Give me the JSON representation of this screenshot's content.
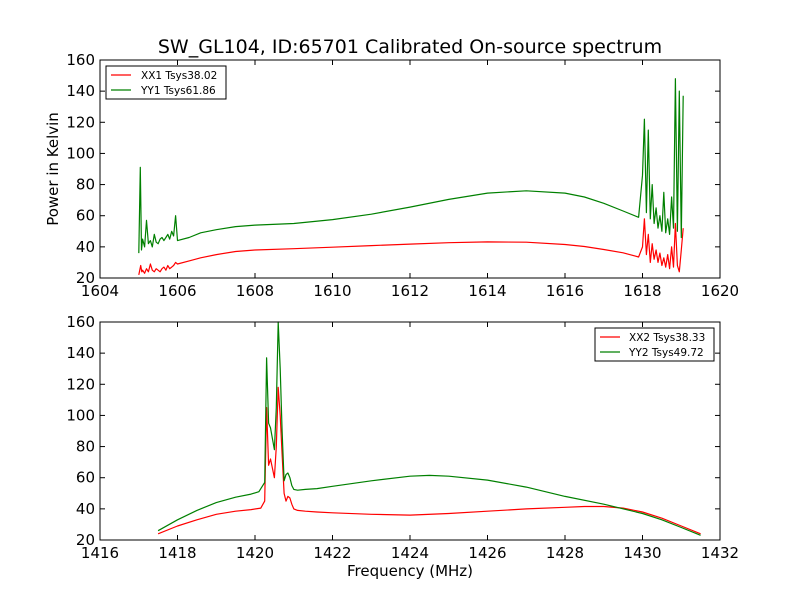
{
  "chart_data": [
    {
      "type": "line",
      "title": "SW_GL104, ID:65701 Calibrated On-source spectrum",
      "xlabel": "",
      "ylabel": "Power in Kelvin",
      "xlim": [
        1604,
        1620
      ],
      "ylim": [
        20,
        160
      ],
      "xticks": [
        1604,
        1606,
        1608,
        1610,
        1612,
        1614,
        1616,
        1618,
        1620
      ],
      "yticks": [
        20,
        40,
        60,
        80,
        100,
        120,
        140,
        160
      ],
      "grid": false,
      "legend": "top-left",
      "series": [
        {
          "name": "XX1 Tsys38.02",
          "color": "#ff0000",
          "x": [
            1605.0,
            1605.05,
            1605.08,
            1605.1,
            1605.15,
            1605.2,
            1605.25,
            1605.3,
            1605.35,
            1605.4,
            1605.45,
            1605.5,
            1605.55,
            1605.6,
            1605.65,
            1605.7,
            1605.75,
            1605.8,
            1605.85,
            1605.9,
            1605.95,
            1606.0,
            1606.3,
            1606.6,
            1607.0,
            1607.5,
            1608.0,
            1609.0,
            1610.0,
            1611.0,
            1612.0,
            1613.0,
            1614.0,
            1615.0,
            1616.0,
            1616.5,
            1617.0,
            1617.5,
            1617.9,
            1618.0,
            1618.05,
            1618.1,
            1618.15,
            1618.2,
            1618.25,
            1618.3,
            1618.35,
            1618.4,
            1618.45,
            1618.5,
            1618.55,
            1618.6,
            1618.65,
            1618.7,
            1618.75,
            1618.8,
            1618.85,
            1618.9,
            1618.95,
            1619.0,
            1619.05
          ],
          "y": [
            22,
            28,
            24,
            25,
            23,
            26,
            24,
            29,
            25,
            24,
            26,
            25,
            24,
            26,
            27,
            25,
            28,
            26,
            27,
            28,
            30,
            29,
            31,
            33,
            35,
            37,
            38,
            38.8,
            39.8,
            40.8,
            41.8,
            42.7,
            43.2,
            43.0,
            41.5,
            40.2,
            38.3,
            36.2,
            33.5,
            40,
            58,
            35,
            48,
            30,
            42,
            32,
            38,
            30,
            36,
            28,
            33,
            27,
            35,
            26,
            40,
            27,
            55,
            28,
            24,
            38,
            52
          ]
        },
        {
          "name": "YY1 Tsys61.86",
          "color": "#008000",
          "x": [
            1605.0,
            1605.04,
            1605.07,
            1605.1,
            1605.15,
            1605.2,
            1605.25,
            1605.3,
            1605.35,
            1605.4,
            1605.45,
            1605.5,
            1605.55,
            1605.6,
            1605.65,
            1605.7,
            1605.75,
            1605.8,
            1605.85,
            1605.9,
            1605.95,
            1606.0,
            1606.3,
            1606.6,
            1607.0,
            1607.5,
            1608.0,
            1609.0,
            1610.0,
            1611.0,
            1612.0,
            1613.0,
            1614.0,
            1615.0,
            1616.0,
            1616.5,
            1617.0,
            1617.5,
            1617.9,
            1618.0,
            1618.05,
            1618.1,
            1618.15,
            1618.2,
            1618.25,
            1618.3,
            1618.35,
            1618.4,
            1618.45,
            1618.5,
            1618.55,
            1618.6,
            1618.65,
            1618.7,
            1618.75,
            1618.8,
            1618.85,
            1618.9,
            1618.95,
            1619.0,
            1619.05
          ],
          "y": [
            36,
            91,
            38,
            45,
            40,
            57,
            42,
            44,
            40,
            48,
            43,
            42,
            45,
            46,
            44,
            46,
            48,
            45,
            50,
            47,
            60,
            44,
            46,
            49,
            51,
            53,
            54,
            55,
            57.5,
            61,
            65.5,
            70.5,
            74.5,
            76,
            74.5,
            72,
            68,
            63,
            59,
            86,
            122,
            62,
            115,
            58,
            80,
            55,
            65,
            52,
            60,
            50,
            75,
            49,
            58,
            48,
            72,
            52,
            148,
            50,
            140,
            46,
            137
          ]
        }
      ]
    },
    {
      "type": "line",
      "title": "",
      "xlabel": "Frequency (MHz)",
      "ylabel": "",
      "xlim": [
        1416,
        1432
      ],
      "ylim": [
        20,
        160
      ],
      "xticks": [
        1416,
        1418,
        1420,
        1422,
        1424,
        1426,
        1428,
        1430,
        1432
      ],
      "yticks": [
        20,
        40,
        60,
        80,
        100,
        120,
        140,
        160
      ],
      "grid": false,
      "legend": "top-right",
      "series": [
        {
          "name": "XX2 Tsys38.33",
          "color": "#ff0000",
          "x": [
            1417.5,
            1418.0,
            1418.5,
            1419.0,
            1419.5,
            1419.9,
            1420.15,
            1420.25,
            1420.3,
            1420.35,
            1420.4,
            1420.5,
            1420.55,
            1420.6,
            1420.65,
            1420.7,
            1420.75,
            1420.8,
            1420.85,
            1420.9,
            1420.95,
            1421.0,
            1421.1,
            1421.3,
            1421.6,
            1422.0,
            1423.0,
            1424.0,
            1425.0,
            1426.0,
            1427.0,
            1428.0,
            1428.5,
            1429.0,
            1429.5,
            1430.0,
            1430.5,
            1431.0,
            1431.5
          ],
          "y": [
            24,
            29,
            33,
            36.5,
            38.5,
            39.5,
            40.5,
            45,
            105,
            68,
            72,
            60,
            80,
            118,
            100,
            75,
            50,
            45,
            48,
            47,
            43,
            40,
            39,
            38.5,
            38,
            37.5,
            36.5,
            36,
            37,
            38.5,
            40,
            41,
            41.5,
            41.5,
            40.5,
            38,
            34,
            29,
            24
          ]
        },
        {
          "name": "YY2 Tsys49.72",
          "color": "#008000",
          "x": [
            1417.5,
            1418.0,
            1418.5,
            1419.0,
            1419.5,
            1419.9,
            1420.1,
            1420.25,
            1420.3,
            1420.35,
            1420.4,
            1420.5,
            1420.55,
            1420.6,
            1420.65,
            1420.7,
            1420.75,
            1420.8,
            1420.85,
            1420.9,
            1420.95,
            1421.0,
            1421.1,
            1421.3,
            1421.6,
            1422.0,
            1423.0,
            1424.0,
            1424.5,
            1425.0,
            1426.0,
            1427.0,
            1428.0,
            1429.0,
            1430.0,
            1430.5,
            1431.0,
            1431.5
          ],
          "y": [
            26,
            33,
            39,
            44,
            47.5,
            49.5,
            51,
            57,
            137,
            95,
            92,
            78,
            105,
            160,
            130,
            90,
            58,
            62,
            63,
            60,
            55,
            52.5,
            52,
            52.5,
            53,
            54.5,
            58,
            61,
            61.5,
            61,
            58.5,
            54,
            48,
            43,
            37,
            33,
            28,
            23
          ]
        }
      ]
    }
  ]
}
